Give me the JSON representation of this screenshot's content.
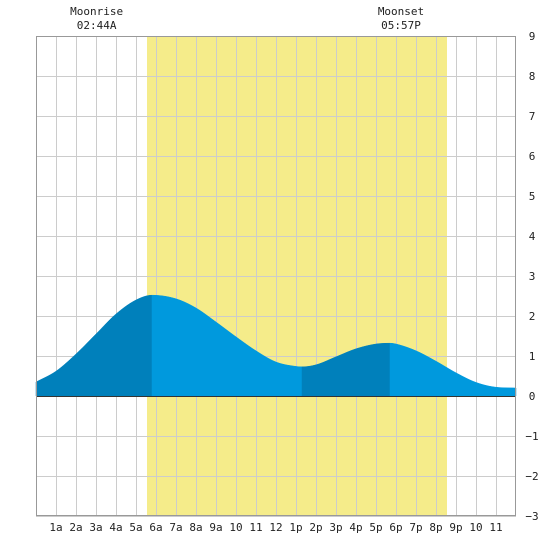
{
  "chart_data": {
    "type": "area",
    "x_tick_labels": [
      "1a",
      "2a",
      "3a",
      "4a",
      "5a",
      "6a",
      "7a",
      "8a",
      "9a",
      "10",
      "11",
      "12",
      "1p",
      "2p",
      "3p",
      "4p",
      "5p",
      "6p",
      "7p",
      "8p",
      "9p",
      "10",
      "11"
    ],
    "y_ticks": [
      9,
      8,
      7,
      6,
      5,
      4,
      3,
      2,
      1,
      0,
      -1,
      -2,
      -3
    ],
    "xlim": [
      0,
      24
    ],
    "ylim": [
      -3,
      9
    ],
    "grid": true,
    "daylight": {
      "start_hour": 5.55,
      "end_hour": 20.55,
      "color": "#f5ec8a"
    },
    "moon_events": [
      {
        "label": "Moonrise",
        "time": "02:44A",
        "hour": 2.73
      },
      {
        "label": "Moonset",
        "time": "05:57P",
        "hour": 17.95
      }
    ],
    "series": [
      {
        "x": [
          0,
          1,
          2,
          3,
          4,
          5,
          5.8,
          7,
          8,
          9,
          10,
          11,
          12,
          13,
          13.3,
          14,
          15,
          16,
          17,
          17.7,
          18,
          19,
          20,
          21,
          22,
          23,
          24
        ],
        "y": [
          0.35,
          0.62,
          1.05,
          1.55,
          2.05,
          2.4,
          2.52,
          2.43,
          2.2,
          1.85,
          1.48,
          1.13,
          0.85,
          0.74,
          0.73,
          0.78,
          0.98,
          1.18,
          1.3,
          1.32,
          1.3,
          1.13,
          0.87,
          0.58,
          0.34,
          0.22,
          0.2
        ]
      }
    ],
    "colors": {
      "rising": "#0080bb",
      "falling": "#0099dd",
      "grid": "#cccccc",
      "zero_line": "#333333"
    }
  }
}
